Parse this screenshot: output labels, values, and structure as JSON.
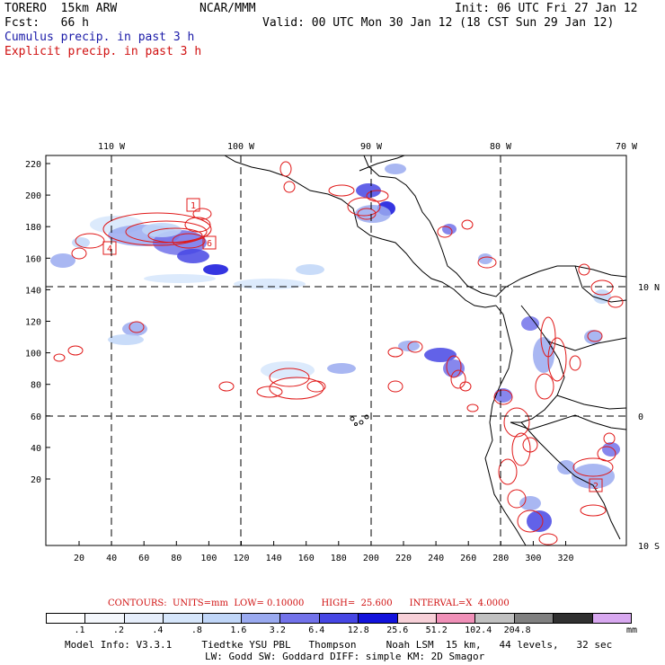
{
  "header": {
    "model": "TORERO  15km ARW",
    "org": "NCAR/MMM",
    "init": "Init: 06 UTC Fri 27 Jan 12",
    "fcst": "Fcst:   66 h",
    "valid": "Valid: 00 UTC Mon 30 Jan 12 (18 CST Sun 29 Jan 12)",
    "cumulus": "Cumulus precip. in past 3 h",
    "explicit": "Explicit precip. in past 3 h"
  },
  "map": {
    "lon_labels": [
      "110 W",
      "100 W",
      "90 W",
      "80 W",
      "70 W"
    ],
    "lat_labels": [
      "10 N",
      "0",
      "10 S"
    ],
    "y_ticks": [
      "220",
      "200",
      "180",
      "160",
      "140",
      "120",
      "100",
      "80",
      "60",
      "40",
      "20"
    ],
    "x_ticks": [
      "20",
      "40",
      "60",
      "80",
      "100",
      "120",
      "140",
      "160",
      "180",
      "200",
      "220",
      "240",
      "260",
      "280",
      "300",
      "320"
    ],
    "box_labels": [
      "1",
      "4",
      "6",
      "2"
    ]
  },
  "contours_line": "CONTOURS:  UNITS=mm  LOW= 0.10000      HIGH=  25.600      INTERVAL=X  4.0000",
  "legend": {
    "colors": [
      "#ffffff",
      "#f4f7fc",
      "#e6eefb",
      "#d6e6fb",
      "#c0d6f8",
      "#9aaaf0",
      "#7272ea",
      "#4646e4",
      "#1212dc",
      "#f7d0d8",
      "#f090b8",
      "#c0c0c0",
      "#808080",
      "#303030",
      "#d8a8f0"
    ],
    "labels": [
      ".1",
      ".2",
      ".4",
      ".8",
      "1.6",
      "3.2",
      "6.4",
      "12.8",
      "25.6",
      "51.2",
      "102.4",
      "204.8"
    ],
    "units": "mm"
  },
  "info_line1": "Model Info: V3.3.1     Tiedtke YSU PBL   Thompson     Noah LSM  15 km,   44 levels,   32 sec",
  "info_line2": "LW: Godd SW: Goddard DIFF: simple KM: 2D Smagor"
}
